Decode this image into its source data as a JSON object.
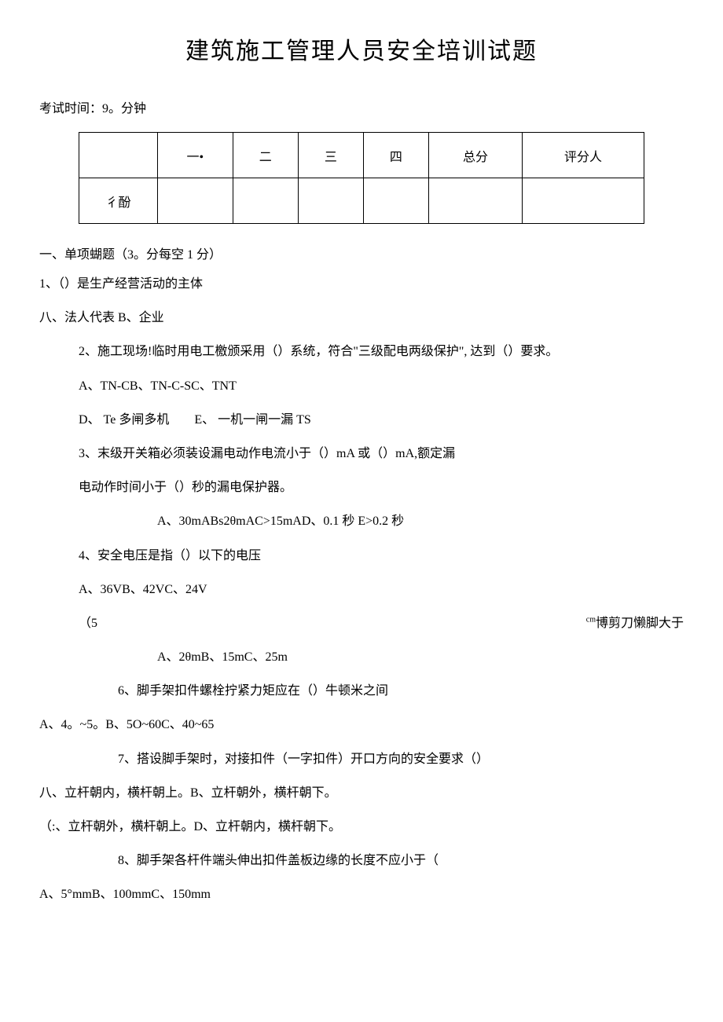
{
  "title": "建筑施工管理人员安全培训试题",
  "exam_time": "考试时间：9。分钟",
  "table": {
    "headers": [
      "",
      "一•",
      "二",
      "三",
      "四",
      "总分",
      "评分人"
    ],
    "score_label": "彳酚"
  },
  "section1": "一、单项蝴题（3。分每空 1 分）",
  "q1": "1、（）是生产经营活动的主体",
  "q1_opts": "八、法人代表 B、企业",
  "q2": "2、施工现场!临时用电工檄颁采用（）系统，符合\"三级配电两级保护\", 达到（）要求。",
  "q2_opts_a": "A、TN-CB、TN-C-SC、TNT",
  "q2_opts_b": "D、 Te 多闸多机  E、 一机一闸一漏 TS",
  "q3_a": "3、末级开关箱必须装设漏电动作电流小于（）mA 或（）mA,额定漏",
  "q3_b": "电动作时间小于（）秒的漏电保护器。",
  "q3_opts": "A、30mABs2θmAC>15mAD、0.1 秒 E>0.2 秒",
  "q4": "4、安全电压是指（）以下的电压",
  "q4_opts": "A、36VB、42VC、24V",
  "q5_left": "（5",
  "q5_cm": "cm",
  "q5_right": "博剪刀懒脚大于",
  "q5_opts": "A、2θmB、15mC、25m",
  "q6": "6、脚手架扣件螺栓拧紧力矩应在（）牛顿米之间",
  "q6_opts": "A、4。~5。B、5O~60C、40~65",
  "q7": "7、搭设脚手架时，对接扣件（一字扣件）开口方向的安全要求（）",
  "q7_opts_a": "八、立杆朝内，横杆朝上。B、立杆朝外，横杆朝下。",
  "q7_opts_b": "（:、立杆朝外，横杆朝上。D、立杆朝内，横杆朝下。",
  "q8": "8、脚手架各杆件端头伸出扣件盖板边缘的长度不应小于（",
  "q8_opts": "A、5°mmB、100mmC、150mm"
}
